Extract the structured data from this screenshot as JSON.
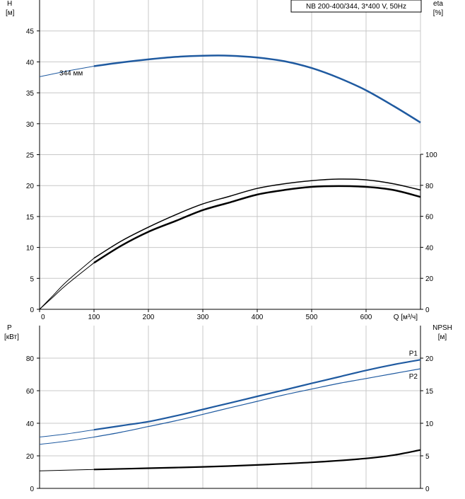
{
  "header": {
    "title": "NB 200-400/344, 3*400 V, 50Hz"
  },
  "chart_data": [
    {
      "type": "line",
      "title": "",
      "q_axis": {
        "label": "Q [м³/ч]",
        "ticks": [
          0,
          100,
          200,
          300,
          400,
          500,
          600
        ],
        "range": [
          0,
          700
        ]
      },
      "h_axis": {
        "label_line1": "H",
        "label_line2": "[м]",
        "ticks": [
          0,
          5,
          10,
          15,
          20,
          25,
          30,
          35,
          40,
          45
        ],
        "range": [
          0,
          50
        ]
      },
      "eta_axis": {
        "label_line1": "eta",
        "label_line2": "[%]",
        "ticks": [
          0,
          20,
          40,
          60,
          80,
          100
        ],
        "range": [
          0,
          100
        ]
      },
      "grid": true,
      "series": [
        {
          "name": "344 мм",
          "color": "#1f5aa0",
          "axis": "H",
          "x": [
            0,
            50,
            100,
            150,
            200,
            250,
            300,
            350,
            400,
            450,
            500,
            550,
            600,
            650,
            700
          ],
          "y": [
            37.6,
            38.5,
            39.3,
            39.9,
            40.4,
            40.8,
            41.0,
            41.0,
            40.7,
            40.1,
            39.0,
            37.4,
            35.4,
            32.9,
            30.2
          ]
        },
        {
          "name": "",
          "color": "#000000",
          "axis": "eta",
          "x": [
            0,
            25,
            50,
            100,
            150,
            200,
            250,
            300,
            350,
            400,
            450,
            500,
            550,
            600,
            650,
            700
          ],
          "y": [
            0,
            9,
            18,
            33,
            44,
            53,
            61,
            68,
            73,
            78,
            81,
            83,
            84,
            83.5,
            81,
            77
          ]
        },
        {
          "name": "",
          "color": "#000000",
          "axis": "eta",
          "x": [
            0,
            25,
            50,
            100,
            150,
            200,
            250,
            300,
            350,
            400,
            450,
            500,
            550,
            600,
            650,
            700
          ],
          "y": [
            0,
            8,
            16,
            30,
            41,
            50,
            57,
            64,
            69,
            74,
            77,
            79,
            79.5,
            79,
            77,
            72.5
          ]
        }
      ]
    },
    {
      "type": "line",
      "title": "",
      "p_axis": {
        "label_line1": "P",
        "label_line2": "[кВт]",
        "ticks": [
          0,
          20,
          40,
          60,
          80
        ],
        "range": [
          0,
          100
        ]
      },
      "npsh_axis": {
        "label_line1": "NPSH",
        "label_line2": "[м]",
        "ticks": [
          0,
          5,
          10,
          15,
          20
        ],
        "range": [
          0,
          25
        ]
      },
      "grid": true,
      "series": [
        {
          "name": "P1",
          "color": "#1f5aa0",
          "axis": "P",
          "x": [
            0,
            50,
            100,
            150,
            200,
            250,
            300,
            350,
            400,
            450,
            500,
            550,
            600,
            650,
            700
          ],
          "y": [
            31.5,
            33.5,
            36.0,
            38.5,
            41.0,
            44.5,
            48.5,
            52.5,
            56.5,
            60.5,
            64.5,
            68.5,
            72.5,
            76.0,
            79.0
          ]
        },
        {
          "name": "P2",
          "color": "#1f5aa0",
          "axis": "P",
          "x": [
            0,
            50,
            100,
            150,
            200,
            250,
            300,
            350,
            400,
            450,
            500,
            550,
            600,
            650,
            700
          ],
          "y": [
            27.0,
            29.0,
            31.5,
            34.5,
            38.0,
            41.5,
            45.5,
            49.5,
            53.5,
            57.5,
            61.0,
            64.5,
            67.5,
            70.5,
            73.5
          ]
        },
        {
          "name": "",
          "color": "#000000",
          "axis": "NPSH",
          "x": [
            0,
            100,
            200,
            300,
            400,
            500,
            600,
            650,
            700
          ],
          "y": [
            2.7,
            2.9,
            3.1,
            3.3,
            3.6,
            4.0,
            4.6,
            5.1,
            5.9
          ]
        }
      ]
    }
  ]
}
